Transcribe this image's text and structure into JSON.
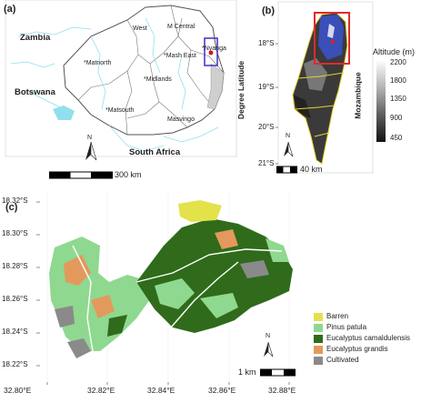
{
  "panel_a": {
    "label": "(a)",
    "countries": [
      "Zambia",
      "Botswana",
      "South Africa"
    ],
    "provinces": [
      "West",
      "M Central",
      "*Nyanga",
      "*Mash East",
      "*Matnorth",
      "*Midlands",
      "*Matsouth",
      "Masvingo"
    ],
    "north": "N",
    "scale": "300 km"
  },
  "panel_b": {
    "label": "(b)",
    "y_axis_title": "Degree Latitude",
    "lat_ticks": [
      "18°S",
      "19°S",
      "20°S",
      "21°S"
    ],
    "country": "Mozambique",
    "legend_title": "Altitude (m)",
    "legend_ticks": [
      "2200",
      "1800",
      "1350",
      "900",
      "450"
    ],
    "north": "N",
    "scale": "40 km"
  },
  "panel_c": {
    "label": "(c)",
    "lat_ticks": [
      "18.32°S",
      "18.30°S",
      "18.28°S",
      "18.26°S",
      "18.24°S",
      "18.22°S"
    ],
    "lon_ticks": [
      "32.80°E",
      "32.82°E",
      "32.84°E",
      "32.86°E",
      "32.88°E"
    ],
    "legend": [
      {
        "label": "Barren",
        "color": "#e3e24b"
      },
      {
        "label": "Pinus patula",
        "color": "#8fd88f"
      },
      {
        "label": "Eucalyptus camaldulensis",
        "color": "#2f6b1b"
      },
      {
        "label": "Eucalyptus grandis",
        "color": "#e3995c"
      },
      {
        "label": "Cultivated",
        "color": "#8a8a8a"
      }
    ],
    "north": "N",
    "scale": "1 km"
  }
}
